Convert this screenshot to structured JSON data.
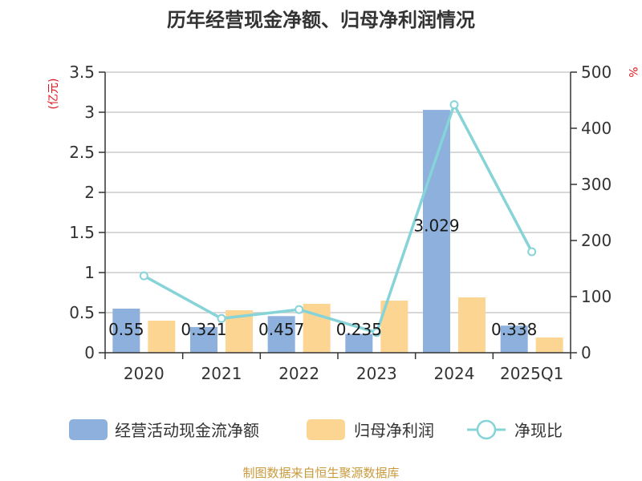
{
  "chart_data": {
    "type": "bar",
    "title": "历年经营现金净额、归母净利润情况",
    "categories": [
      "2020",
      "2021",
      "2022",
      "2023",
      "2024",
      "2025Q1"
    ],
    "series": [
      {
        "name": "经营活动现金流净额",
        "kind": "bar",
        "axis": "left",
        "color": "#8eb0dc",
        "values": [
          0.55,
          0.321,
          0.457,
          0.235,
          3.029,
          0.338
        ],
        "labels": [
          "0.55",
          "0.321",
          "0.457",
          "0.235",
          "3.029",
          "0.338"
        ]
      },
      {
        "name": "归母净利润",
        "kind": "bar",
        "axis": "left",
        "color": "#fdd592",
        "values": [
          0.4,
          0.53,
          0.61,
          0.65,
          0.69,
          0.19
        ]
      },
      {
        "name": "净现比",
        "kind": "line",
        "axis": "right",
        "color": "#86d3d8",
        "values": [
          137,
          61,
          77,
          36,
          442,
          180
        ]
      }
    ],
    "y_left": {
      "unit": "(亿元)",
      "min": 0,
      "max": 3.5,
      "ticks": [
        0,
        0.5,
        1,
        1.5,
        2,
        2.5,
        3,
        3.5
      ],
      "tick_labels": [
        "0",
        "0.5",
        "1",
        "1.5",
        "2",
        "2.5",
        "3",
        "3.5"
      ]
    },
    "y_right": {
      "unit": "%",
      "min": 0,
      "max": 500,
      "ticks": [
        0,
        100,
        200,
        300,
        400,
        500
      ],
      "tick_labels": [
        "0",
        "100",
        "200",
        "300",
        "400",
        "500"
      ]
    },
    "grid": true,
    "legend_position": "bottom"
  },
  "source_note": "制图数据来自恒生聚源数据库",
  "colors": {
    "grid": "#cccccc",
    "axis": "#333333",
    "unit_text": "#e0141a",
    "source_text": "#c89a3c"
  }
}
